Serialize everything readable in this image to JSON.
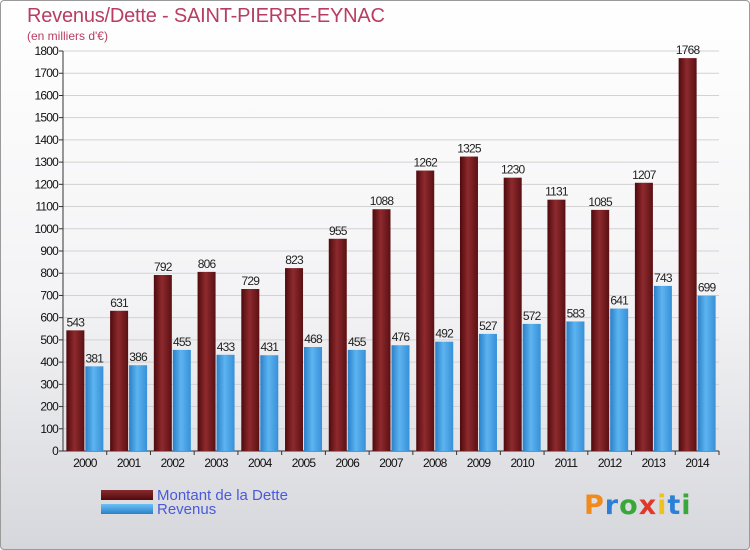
{
  "header": {
    "title": "Revenus/Dette - SAINT-PIERRE-EYNAC",
    "subtitle": "(en milliers d'€)"
  },
  "logo": {
    "letters": [
      "P",
      "r",
      "o",
      "x",
      "i",
      "t",
      "i"
    ],
    "colors": [
      "#f08a1c",
      "#2b7fd8",
      "#39a83a",
      "#e0392b",
      "#f0c21c",
      "#2b7fd8",
      "#39a83a"
    ]
  },
  "chart_data": {
    "type": "bar",
    "categories": [
      "2000",
      "2001",
      "2002",
      "2003",
      "2004",
      "2005",
      "2006",
      "2007",
      "2008",
      "2009",
      "2010",
      "2011",
      "2012",
      "2013",
      "2014"
    ],
    "series": [
      {
        "name": "Montant de la Dette",
        "color": "#7a1c1f",
        "values": [
          543,
          631,
          792,
          806,
          729,
          823,
          955,
          1088,
          1262,
          1325,
          1230,
          1131,
          1085,
          1207,
          1768
        ]
      },
      {
        "name": "Revenus",
        "color": "#3f9ee0",
        "values": [
          381,
          386,
          455,
          433,
          431,
          468,
          455,
          476,
          492,
          527,
          572,
          583,
          641,
          743,
          699
        ]
      }
    ],
    "ylim": [
      0,
      1800
    ],
    "yticks": [
      0,
      100,
      200,
      300,
      400,
      500,
      600,
      700,
      800,
      900,
      1000,
      1100,
      1200,
      1300,
      1400,
      1500,
      1600,
      1700,
      1800
    ],
    "grid": true,
    "legend": "bottom-left"
  }
}
